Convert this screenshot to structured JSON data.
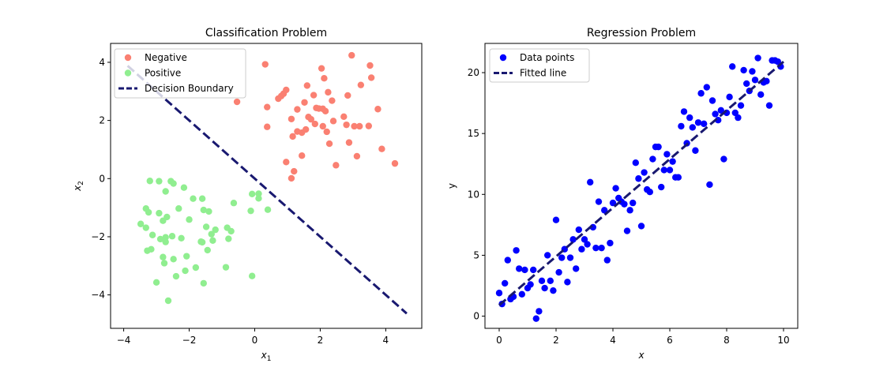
{
  "chart_data": [
    {
      "type": "scatter",
      "title": "Classification Problem",
      "xlabel": "x",
      "xlabel_sub": "1",
      "ylabel": "x",
      "ylabel_sub": "2",
      "xlim": [
        -4.4,
        5.1
      ],
      "ylim": [
        -5.15,
        4.65
      ],
      "xticks": [
        -4,
        -2,
        0,
        2,
        4
      ],
      "yticks": [
        -4,
        -2,
        0,
        2,
        4
      ],
      "tick_labels_x": [
        "−4",
        "−2",
        "0",
        "2",
        "4"
      ],
      "tick_labels_y": [
        "−4",
        "−2",
        "0",
        "2",
        "4"
      ],
      "legend_position": "upper-left",
      "series": [
        {
          "name": "Negative",
          "kind": "scatter",
          "color": "#fa8072",
          "points": [
            [
              -0.54,
              2.64
            ],
            [
              0.32,
              3.93
            ],
            [
              0.38,
              2.46
            ],
            [
              0.38,
              1.78
            ],
            [
              0.72,
              2.75
            ],
            [
              0.81,
              2.84
            ],
            [
              0.88,
              2.92
            ],
            [
              0.96,
              3.05
            ],
            [
              0.96,
              0.57
            ],
            [
              1.12,
              0.01
            ],
            [
              1.12,
              2.05
            ],
            [
              1.16,
              1.45
            ],
            [
              1.2,
              0.25
            ],
            [
              1.3,
              1.62
            ],
            [
              1.3,
              2.38
            ],
            [
              1.44,
              1.58
            ],
            [
              1.44,
              0.79
            ],
            [
              1.52,
              2.62
            ],
            [
              1.56,
              1.69
            ],
            [
              1.6,
              3.2
            ],
            [
              1.64,
              2.12
            ],
            [
              1.72,
              2.04
            ],
            [
              1.8,
              2.87
            ],
            [
              1.84,
              1.88
            ],
            [
              1.88,
              2.43
            ],
            [
              1.96,
              2.41
            ],
            [
              2.04,
              3.79
            ],
            [
              2.08,
              1.8
            ],
            [
              2.08,
              2.4
            ],
            [
              2.12,
              3.45
            ],
            [
              2.16,
              2.32
            ],
            [
              2.2,
              1.61
            ],
            [
              2.24,
              2.97
            ],
            [
              2.28,
              1.2
            ],
            [
              2.36,
              2.68
            ],
            [
              2.4,
              1.98
            ],
            [
              2.48,
              0.46
            ],
            [
              2.72,
              2.13
            ],
            [
              2.8,
              1.85
            ],
            [
              2.84,
              2.86
            ],
            [
              2.88,
              1.24
            ],
            [
              2.96,
              4.24
            ],
            [
              3.04,
              1.8
            ],
            [
              3.12,
              0.77
            ],
            [
              3.2,
              1.8
            ],
            [
              3.24,
              3.22
            ],
            [
              3.48,
              1.81
            ],
            [
              3.52,
              3.89
            ],
            [
              3.56,
              3.47
            ],
            [
              3.76,
              2.39
            ],
            [
              3.88,
              1.02
            ],
            [
              4.28,
              0.52
            ]
          ]
        },
        {
          "name": "Positive",
          "kind": "scatter",
          "color": "#90ee90",
          "points": [
            [
              -3.48,
              -1.56
            ],
            [
              -3.32,
              -1.03
            ],
            [
              -3.32,
              -1.69
            ],
            [
              -3.28,
              -2.48
            ],
            [
              -3.24,
              -1.16
            ],
            [
              -3.2,
              -0.08
            ],
            [
              -3.16,
              -2.43
            ],
            [
              -3.12,
              -1.94
            ],
            [
              -3.0,
              -3.57
            ],
            [
              -2.92,
              -0.09
            ],
            [
              -2.92,
              -1.19
            ],
            [
              -2.88,
              -2.08
            ],
            [
              -2.8,
              -1.45
            ],
            [
              -2.8,
              -2.7
            ],
            [
              -2.76,
              -2.91
            ],
            [
              -2.72,
              -0.44
            ],
            [
              -2.72,
              -2.02
            ],
            [
              -2.72,
              -2.18
            ],
            [
              -2.68,
              -1.32
            ],
            [
              -2.64,
              -4.2
            ],
            [
              -2.56,
              -0.09
            ],
            [
              -2.52,
              -1.98
            ],
            [
              -2.48,
              -0.17
            ],
            [
              -2.48,
              -2.77
            ],
            [
              -2.4,
              -3.36
            ],
            [
              -2.32,
              -1.03
            ],
            [
              -2.24,
              -2.05
            ],
            [
              -2.16,
              -0.31
            ],
            [
              -2.12,
              -3.17
            ],
            [
              -2.08,
              -2.67
            ],
            [
              -2.0,
              -1.41
            ],
            [
              -1.88,
              -0.69
            ],
            [
              -1.8,
              -3.06
            ],
            [
              -1.64,
              -2.17
            ],
            [
              -1.6,
              -2.19
            ],
            [
              -1.56,
              -3.6
            ],
            [
              -1.56,
              -1.08
            ],
            [
              -1.48,
              -1.66
            ],
            [
              -1.44,
              -2.46
            ],
            [
              -1.4,
              -1.13
            ],
            [
              -1.32,
              -1.91
            ],
            [
              -1.28,
              -2.13
            ],
            [
              -1.2,
              -1.76
            ],
            [
              -0.88,
              -3.05
            ],
            [
              -0.84,
              -1.69
            ],
            [
              -0.8,
              -2.07
            ],
            [
              -0.72,
              -1.81
            ],
            [
              -0.12,
              -1.11
            ],
            [
              -0.08,
              -3.35
            ],
            [
              -0.08,
              -0.53
            ],
            [
              0.12,
              -0.68
            ],
            [
              0.12,
              -0.52
            ],
            [
              0.4,
              -1.07
            ],
            [
              -0.64,
              -0.84
            ],
            [
              -1.6,
              -0.69
            ]
          ]
        },
        {
          "name": "Decision Boundary",
          "kind": "line",
          "color": "#191970",
          "dash": true,
          "points": [
            [
              -3.88,
              3.88
            ],
            [
              4.64,
              -4.64
            ]
          ]
        }
      ]
    },
    {
      "type": "scatter",
      "title": "Regression Problem",
      "xlabel": "x",
      "ylabel": "y",
      "xlim": [
        -0.5,
        10.5
      ],
      "ylim": [
        -1.0,
        22.4
      ],
      "xticks": [
        0,
        2,
        4,
        6,
        8,
        10
      ],
      "yticks": [
        0,
        5,
        10,
        15,
        20
      ],
      "tick_labels_x": [
        "0",
        "2",
        "4",
        "6",
        "8",
        "10"
      ],
      "tick_labels_y": [
        "0",
        "5",
        "10",
        "15",
        "20"
      ],
      "legend_position": "upper-left",
      "series": [
        {
          "name": "Data points",
          "kind": "scatter",
          "color": "#0000ff",
          "points": [
            [
              0.0,
              1.9
            ],
            [
              0.1,
              1.0
            ],
            [
              0.2,
              2.7
            ],
            [
              0.3,
              4.6
            ],
            [
              0.4,
              1.4
            ],
            [
              0.5,
              1.6
            ],
            [
              0.6,
              5.4
            ],
            [
              0.7,
              3.9
            ],
            [
              0.8,
              1.8
            ],
            [
              0.9,
              3.8
            ],
            [
              1.0,
              2.3
            ],
            [
              1.1,
              2.6
            ],
            [
              1.2,
              3.8
            ],
            [
              1.3,
              -0.2
            ],
            [
              1.4,
              0.4
            ],
            [
              1.5,
              2.9
            ],
            [
              1.6,
              2.3
            ],
            [
              1.7,
              5.0
            ],
            [
              1.8,
              2.9
            ],
            [
              1.9,
              2.1
            ],
            [
              2.0,
              7.9
            ],
            [
              2.1,
              3.6
            ],
            [
              2.2,
              4.8
            ],
            [
              2.3,
              5.5
            ],
            [
              2.4,
              2.8
            ],
            [
              2.5,
              4.8
            ],
            [
              2.6,
              6.3
            ],
            [
              2.7,
              3.9
            ],
            [
              2.8,
              7.1
            ],
            [
              2.9,
              5.5
            ],
            [
              3.0,
              6.3
            ],
            [
              3.1,
              5.9
            ],
            [
              3.2,
              11.0
            ],
            [
              3.3,
              7.3
            ],
            [
              3.4,
              5.6
            ],
            [
              3.5,
              9.4
            ],
            [
              3.6,
              5.6
            ],
            [
              3.7,
              8.7
            ],
            [
              3.8,
              4.6
            ],
            [
              3.9,
              6.0
            ],
            [
              4.0,
              9.3
            ],
            [
              4.1,
              10.5
            ],
            [
              4.2,
              9.7
            ],
            [
              4.3,
              9.4
            ],
            [
              4.4,
              9.2
            ],
            [
              4.5,
              7.0
            ],
            [
              4.6,
              8.7
            ],
            [
              4.7,
              9.3
            ],
            [
              4.8,
              12.6
            ],
            [
              4.9,
              11.3
            ],
            [
              5.0,
              7.4
            ],
            [
              5.1,
              11.8
            ],
            [
              5.2,
              10.4
            ],
            [
              5.3,
              10.2
            ],
            [
              5.4,
              12.9
            ],
            [
              5.5,
              13.9
            ],
            [
              5.6,
              13.9
            ],
            [
              5.7,
              10.6
            ],
            [
              5.8,
              12.0
            ],
            [
              5.9,
              13.3
            ],
            [
              6.0,
              12.0
            ],
            [
              6.1,
              12.7
            ],
            [
              6.2,
              11.4
            ],
            [
              6.3,
              11.4
            ],
            [
              6.4,
              15.6
            ],
            [
              6.5,
              16.8
            ],
            [
              6.6,
              14.2
            ],
            [
              6.7,
              16.3
            ],
            [
              6.8,
              15.5
            ],
            [
              6.9,
              13.6
            ],
            [
              7.0,
              15.9
            ],
            [
              7.1,
              18.3
            ],
            [
              7.2,
              15.8
            ],
            [
              7.3,
              18.8
            ],
            [
              7.4,
              10.8
            ],
            [
              7.5,
              17.7
            ],
            [
              7.6,
              16.6
            ],
            [
              7.7,
              16.1
            ],
            [
              7.8,
              16.9
            ],
            [
              7.9,
              12.9
            ],
            [
              8.0,
              16.7
            ],
            [
              8.1,
              18.0
            ],
            [
              8.2,
              20.5
            ],
            [
              8.3,
              16.7
            ],
            [
              8.4,
              16.3
            ],
            [
              8.5,
              17.3
            ],
            [
              8.6,
              20.2
            ],
            [
              8.7,
              19.1
            ],
            [
              8.8,
              18.5
            ],
            [
              8.9,
              20.1
            ],
            [
              9.0,
              19.4
            ],
            [
              9.1,
              21.2
            ],
            [
              9.2,
              18.2
            ],
            [
              9.3,
              19.2
            ],
            [
              9.4,
              19.3
            ],
            [
              9.5,
              17.3
            ],
            [
              9.6,
              21.0
            ],
            [
              9.7,
              21.0
            ],
            [
              9.8,
              20.9
            ],
            [
              9.9,
              20.5
            ]
          ]
        },
        {
          "name": "Fitted line",
          "kind": "line",
          "color": "#191970",
          "dash": true,
          "points": [
            [
              0.0,
              0.9
            ],
            [
              10.0,
              20.9
            ]
          ]
        }
      ]
    }
  ]
}
